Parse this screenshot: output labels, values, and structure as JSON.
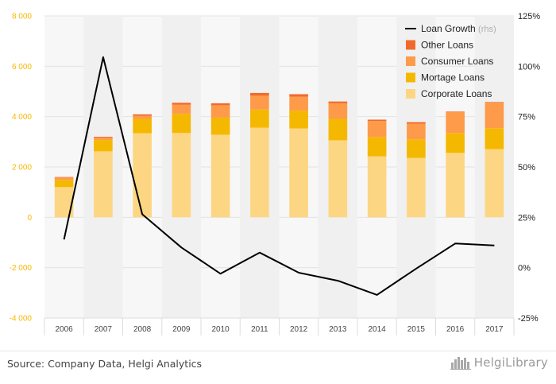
{
  "chart_data": {
    "type": "bar",
    "stacked": true,
    "categories": [
      "2006",
      "2007",
      "2008",
      "2009",
      "2010",
      "2011",
      "2012",
      "2013",
      "2014",
      "2015",
      "2016",
      "2017"
    ],
    "series": [
      {
        "name": "Corporate Loans",
        "color": "#fdd683",
        "values": [
          1200,
          2620,
          3340,
          3350,
          3280,
          3560,
          3530,
          3060,
          2420,
          2360,
          2560,
          2710
        ]
      },
      {
        "name": "Mortage Loans",
        "color": "#f5b800",
        "values": [
          290,
          450,
          570,
          760,
          680,
          720,
          710,
          850,
          770,
          740,
          790,
          830
        ]
      },
      {
        "name": "Consumer Loans",
        "color": "#fd9b4b",
        "values": [
          90,
          100,
          120,
          360,
          490,
          550,
          550,
          620,
          640,
          620,
          830,
          1020
        ]
      },
      {
        "name": "Other Loans",
        "color": "#f26a2a",
        "values": [
          20,
          30,
          60,
          80,
          80,
          110,
          100,
          70,
          50,
          60,
          20,
          20
        ]
      }
    ],
    "line_series": {
      "name": "Loan Growth",
      "name_suffix": "(rhs)",
      "color": "#000000",
      "axis": "right",
      "values": [
        14,
        104.5,
        26.5,
        10,
        -3,
        7.5,
        -2.5,
        -6.5,
        -13.5,
        -0.5,
        12,
        11
      ]
    },
    "y_left": {
      "min": -4000,
      "max": 8000,
      "ticks": [
        "-4 000",
        "-2 000",
        "0",
        "2 000",
        "4 000",
        "6 000",
        "8 000"
      ],
      "color": "#f5b800"
    },
    "y_right": {
      "min": -25,
      "max": 125,
      "ticks": [
        "-25%",
        "0%",
        "25%",
        "50%",
        "75%",
        "100%",
        "125%"
      ]
    },
    "legend_position": "top-right",
    "legend_order": [
      "Loan Growth",
      "Other Loans",
      "Consumer Loans",
      "Mortage Loans",
      "Corporate Loans"
    ]
  },
  "footer": {
    "source": "Source: Company Data, Helgi Analytics",
    "logo_text": "HelgiLibrary",
    "logo_icon": "city-skyline-icon"
  }
}
